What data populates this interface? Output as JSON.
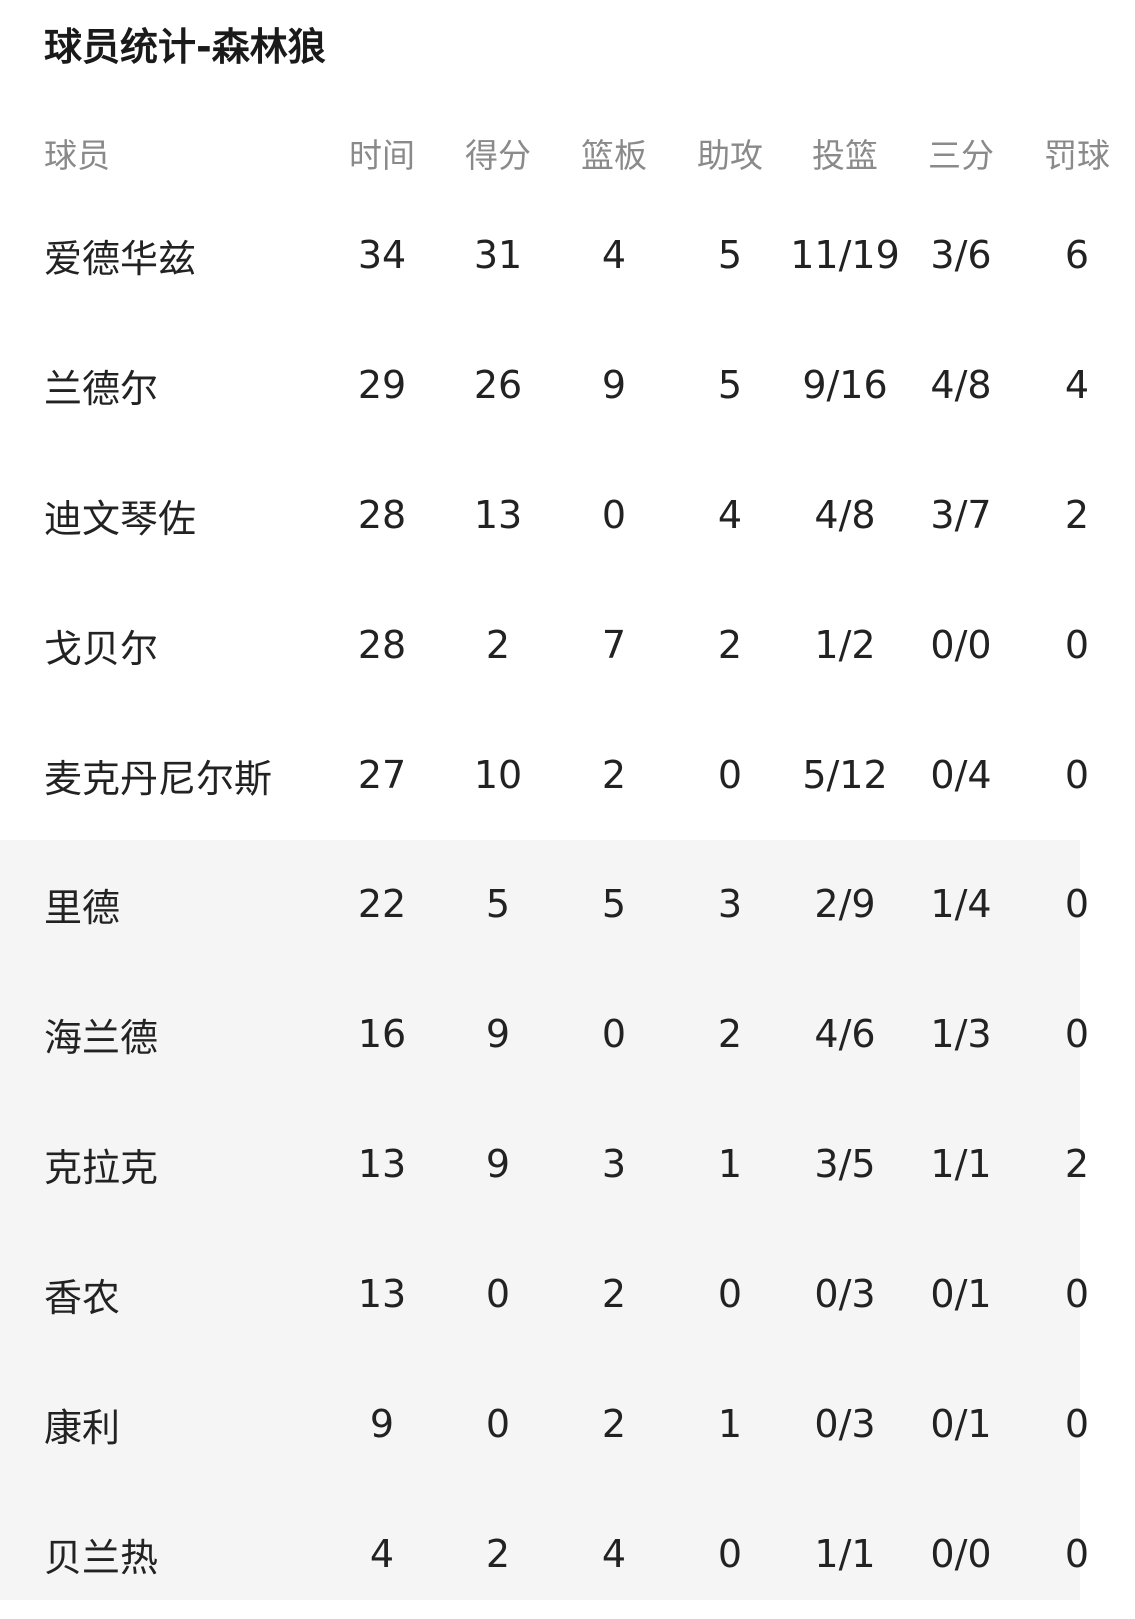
{
  "title": "球员统计-森林狼",
  "headers": [
    "球员",
    "时间",
    "得分",
    "篮板",
    "助攻",
    "投篮",
    "三分",
    "罚球"
  ],
  "starters": [
    [
      "爱德华兹",
      "34",
      "31",
      "4",
      "5",
      "11/19",
      "3/6",
      "6"
    ],
    [
      "兰德尔",
      "29",
      "26",
      "9",
      "5",
      "9/16",
      "4/8",
      "4"
    ],
    [
      "迪文琴佐",
      "28",
      "13",
      "0",
      "4",
      "4/8",
      "3/7",
      "2"
    ],
    [
      "戈贝尔",
      "28",
      "2",
      "7",
      "2",
      "1/2",
      "0/0",
      "0"
    ],
    [
      "麦克丹尼尔斯",
      "27",
      "10",
      "2",
      "0",
      "5/12",
      "0/4",
      "0"
    ]
  ],
  "bench": [
    [
      "里德",
      "22",
      "5",
      "5",
      "3",
      "2/9",
      "1/4",
      "0"
    ],
    [
      "海兰德",
      "16",
      "9",
      "0",
      "2",
      "4/6",
      "1/3",
      "0"
    ],
    [
      "克拉克",
      "13",
      "9",
      "3",
      "1",
      "3/5",
      "1/1",
      "2"
    ],
    [
      "香农",
      "13",
      "0",
      "2",
      "0",
      "0/3",
      "0/1",
      "0"
    ],
    [
      "康利",
      "9",
      "0",
      "2",
      "1",
      "0/3",
      "0/1",
      "0"
    ],
    [
      "贝兰热",
      "4",
      "2",
      "4",
      "0",
      "1/1",
      "0/0",
      "0"
    ]
  ],
  "colors": {
    "bench_background": "#f5f5f5",
    "header_text": "#8a8a8a"
  }
}
